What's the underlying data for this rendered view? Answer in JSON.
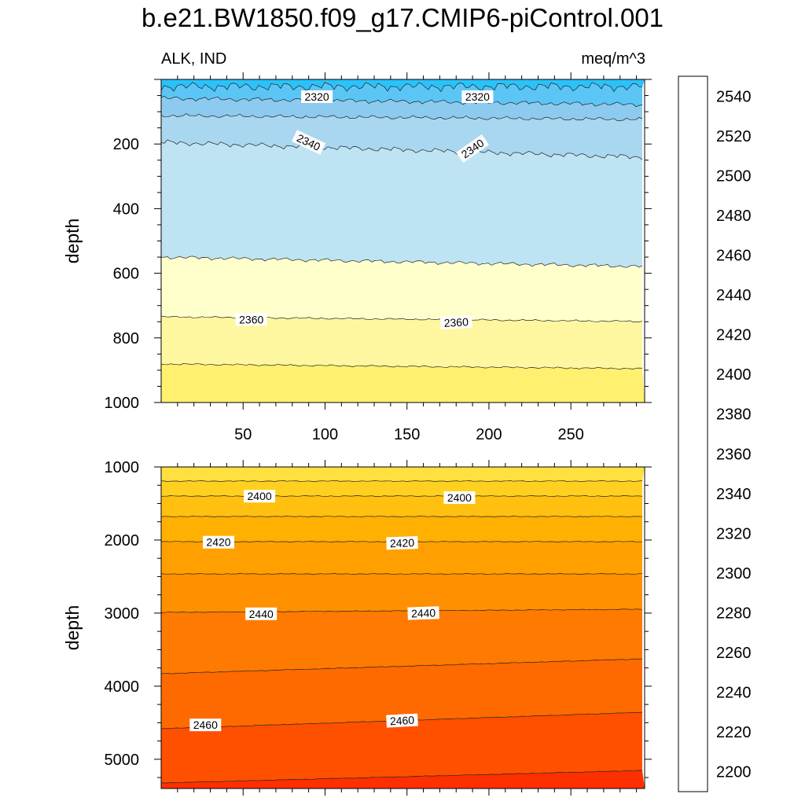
{
  "title": "b.e21.BW1850.f09_g17.CMIP6-piControl.001",
  "left_string": "ALK, IND",
  "right_string": "meq/m^3",
  "chart_data": [
    {
      "type": "contour",
      "panel": "upper",
      "ylabel": "depth",
      "xlim": [
        0,
        295
      ],
      "ylim": [
        1000,
        0
      ],
      "xticks": [
        50,
        100,
        150,
        200,
        250
      ],
      "yticks": [
        200,
        400,
        600,
        800,
        1000
      ],
      "contour_levels": [
        2320,
        2330,
        2340,
        2350,
        2360,
        2370
      ],
      "contour_labels": [
        {
          "text": "2320",
          "x": 95,
          "y": 50
        },
        {
          "text": "2320",
          "x": 193,
          "y": 52
        },
        {
          "text": "2340",
          "x": 90,
          "y": 5
        },
        {
          "text": "2340",
          "x": 190,
          "y": 10
        },
        {
          "text": "2360",
          "x": 55,
          "y": 743
        },
        {
          "text": "2360",
          "x": 180,
          "y": 752
        }
      ]
    },
    {
      "type": "contour",
      "panel": "lower",
      "ylabel": "depth",
      "xlim": [
        0,
        295
      ],
      "ylim": [
        5400,
        1000
      ],
      "xticks": [
        50,
        100,
        150,
        200,
        250
      ],
      "yticks": [
        1000,
        2000,
        3000,
        4000,
        5000
      ],
      "contour_levels": [
        2380,
        2390,
        2400,
        2410,
        2420,
        2430,
        2440,
        2450,
        2460,
        2470
      ],
      "contour_labels": [
        {
          "text": "2400",
          "x": 60,
          "y": 1400
        },
        {
          "text": "2400",
          "x": 182,
          "y": 1420
        },
        {
          "text": "2420",
          "x": 35,
          "y": 2030
        },
        {
          "text": "2420",
          "x": 147,
          "y": 2040
        },
        {
          "text": "2440",
          "x": 61,
          "y": 3010
        },
        {
          "text": "2440",
          "x": 160,
          "y": 3000
        },
        {
          "text": "2460",
          "x": 27,
          "y": 4530
        },
        {
          "text": "2460",
          "x": 147,
          "y": 4470
        }
      ]
    },
    {
      "type": "colorbar",
      "min": 2190,
      "max": 2560,
      "step": 10,
      "tick_labels": [
        "2200",
        "2220",
        "2240",
        "2260",
        "2280",
        "2300",
        "2320",
        "2340",
        "2360",
        "2380",
        "2400",
        "2420",
        "2440",
        "2460",
        "2480",
        "2500",
        "2520",
        "2540"
      ],
      "colors": [
        "#8B2BE2",
        "#6A1AF0",
        "#3A10F0",
        "#0000FF",
        "#1E2CF0",
        "#2E4CE8",
        "#3C6AE0",
        "#2F7AE8",
        "#1F8FF2",
        "#1AA0FA",
        "#00B0F8",
        "#2AC2F8",
        "#5BC6F6",
        "#8CCBEF",
        "#A9D7F0",
        "#BEE4F4",
        "#FFFFCC",
        "#FFF7A0",
        "#FFF070",
        "#FFE040",
        "#FFD020",
        "#FFC010",
        "#FFB000",
        "#FFA000",
        "#FF9000",
        "#FF7A00",
        "#FF6A00",
        "#FF5000",
        "#FF3000",
        "#FF0000",
        "#EE0000",
        "#DC0000",
        "#C80000",
        "#DC2828",
        "#EE6A6A",
        "#FFB0B0"
      ]
    }
  ]
}
